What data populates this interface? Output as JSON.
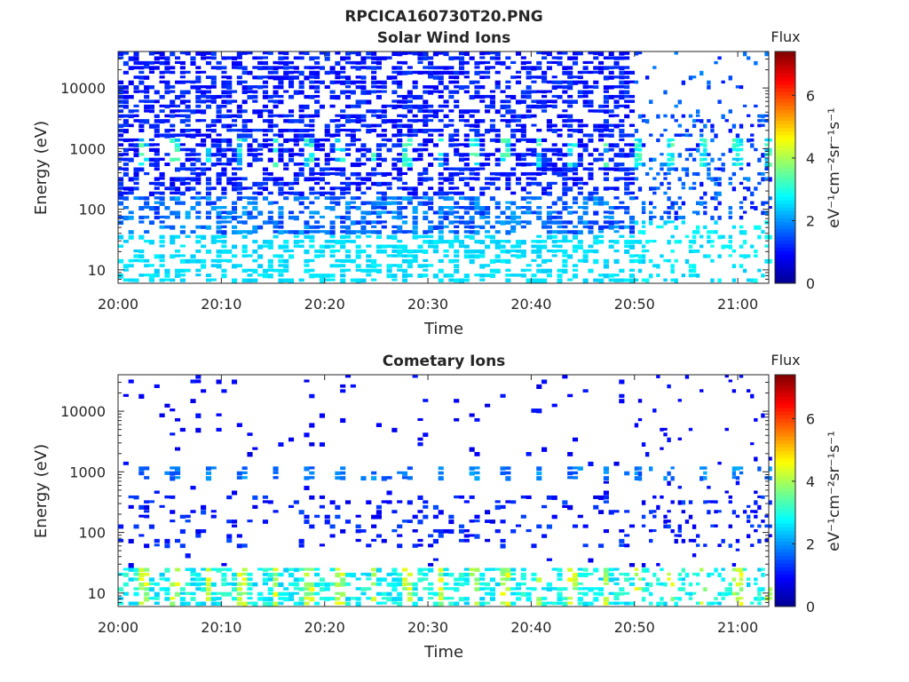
{
  "figure_title": "RPCICA160730T20.PNG",
  "colors": {
    "axis": "#262626",
    "colormap": [
      "#00008f",
      "#0000ff",
      "#007fff",
      "#00ffff",
      "#7fff7f",
      "#ffff00",
      "#ff7f00",
      "#ff0000",
      "#7f0000"
    ]
  },
  "chart_data": [
    {
      "type": "heatmap",
      "title": "Solar Wind Ions",
      "xlabel": "Time",
      "ylabel": "Energy (eV)",
      "x_ticks": [
        "20:00",
        "20:10",
        "20:20",
        "20:30",
        "20:40",
        "20:50",
        "21:00"
      ],
      "x_range_minutes": [
        0,
        63
      ],
      "y_scale": "log",
      "y_ticks": [
        "10",
        "100",
        "1000",
        "10000"
      ],
      "y_range": [
        6,
        40000
      ],
      "colorbar": {
        "title": "Flux",
        "label": "eV⁻¹cm⁻²sr⁻¹s⁻¹",
        "ticks": [
          "0",
          "2",
          "4",
          "6"
        ],
        "range": [
          0,
          7.4
        ]
      },
      "features": {
        "periodic_peak_energy_eV": 900,
        "peak_flux": 3.5,
        "background_flux": 0.8,
        "low_energy_flux": 2.4,
        "sparse_after_minute": 50
      }
    },
    {
      "type": "heatmap",
      "title": "Cometary Ions",
      "xlabel": "Time",
      "ylabel": "Energy (eV)",
      "x_ticks": [
        "20:00",
        "20:10",
        "20:20",
        "20:30",
        "20:40",
        "20:50",
        "21:00"
      ],
      "x_range_minutes": [
        0,
        63
      ],
      "y_scale": "log",
      "y_ticks": [
        "10",
        "100",
        "1000",
        "10000"
      ],
      "y_range": [
        6,
        40000
      ],
      "colorbar": {
        "title": "Flux",
        "label": "eV⁻¹cm⁻²sr⁻¹s⁻¹",
        "ticks": [
          "0",
          "2",
          "4",
          "6"
        ],
        "range": [
          0,
          7.4
        ]
      },
      "features": {
        "periodic_peak_energy_eV": 15,
        "peak_flux": 4.6,
        "band_1000eV_flux": 1.4,
        "background_flux": 0.7,
        "sparse_after_minute": 50
      }
    }
  ]
}
